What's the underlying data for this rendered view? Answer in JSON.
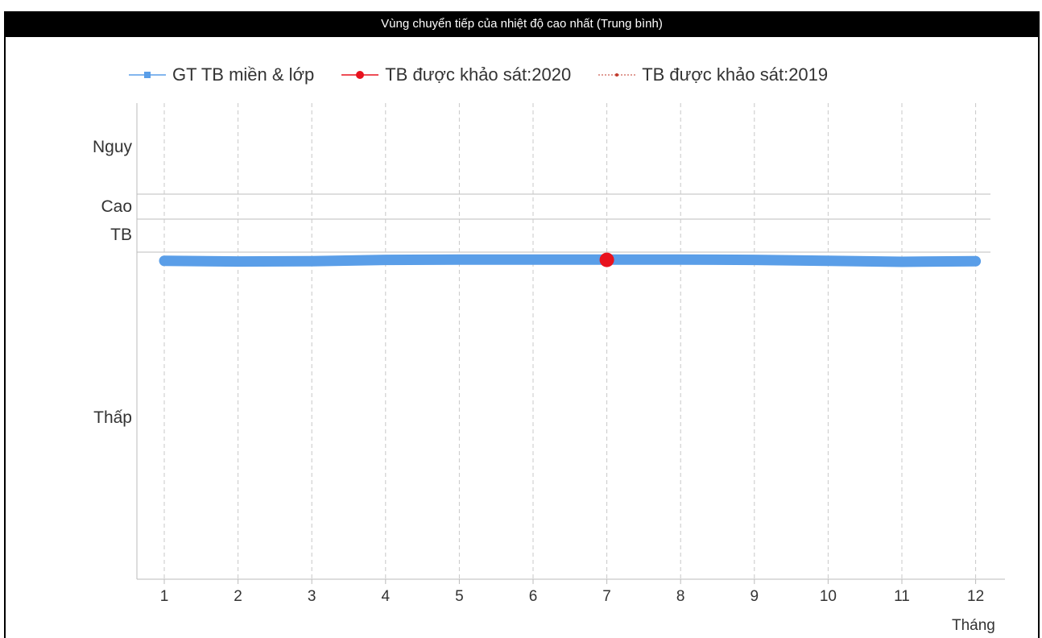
{
  "chart_data": {
    "title": "Vùng chuyển tiếp của nhiệt độ cao nhất (Trung bình)",
    "type": "line",
    "xlabel": "Tháng",
    "x": [
      1,
      2,
      3,
      4,
      5,
      6,
      7,
      8,
      9,
      10,
      11,
      12
    ],
    "x_tick_labels": [
      "1",
      "2",
      "3",
      "4",
      "5",
      "6",
      "7",
      "8",
      "9",
      "10",
      "11",
      "12"
    ],
    "y_zones": [
      {
        "label": "Nguy"
      },
      {
        "label": "Cao"
      },
      {
        "label": "TB"
      },
      {
        "label": "Thấp"
      }
    ],
    "series": [
      {
        "name": "GT TB miền & lớp",
        "color": "#5a9ee8",
        "values": [
          -0.2,
          -0.4,
          -0.3,
          0.1,
          0.2,
          0.2,
          0.2,
          0.2,
          0.1,
          -0.2,
          -0.5,
          -0.3
        ]
      },
      {
        "name": "TB được khảo sát:2020",
        "color": "#e8121e",
        "points": [
          {
            "x": 7,
            "y": 0.1
          }
        ]
      },
      {
        "name": "TB được khảo sát:2019",
        "color": "#c0392b",
        "points": []
      }
    ],
    "grid": "vertical-dashed",
    "legend": "top"
  }
}
